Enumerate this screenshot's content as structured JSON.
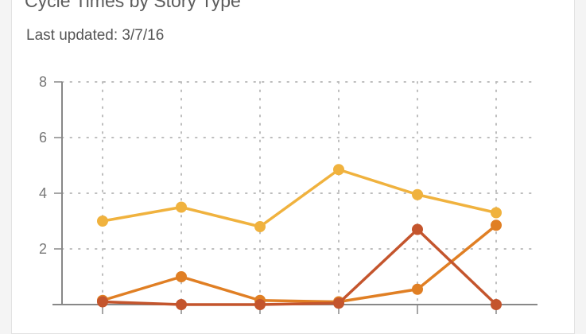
{
  "header": {
    "title": "Cycle Times by Story Type",
    "subtitle": "Last updated: 3/7/16"
  },
  "colors": {
    "background": "#ffffff",
    "axis": "#888888",
    "grid": "#bdbdbd"
  },
  "chart_data": {
    "type": "line",
    "x": [
      1,
      2,
      3,
      4,
      5,
      6
    ],
    "ylim": [
      0,
      8
    ],
    "yticks": [
      2,
      4,
      6,
      8
    ],
    "grid": true,
    "series": [
      {
        "color": "#f0b23e",
        "values": [
          3.0,
          3.5,
          2.8,
          4.85,
          3.95,
          3.3
        ]
      },
      {
        "color": "#e07f24",
        "values": [
          0.15,
          1.0,
          0.15,
          0.1,
          0.55,
          2.85
        ]
      },
      {
        "color": "#c4552d",
        "values": [
          0.1,
          0.0,
          0.0,
          0.05,
          2.7,
          0.0
        ]
      }
    ]
  }
}
